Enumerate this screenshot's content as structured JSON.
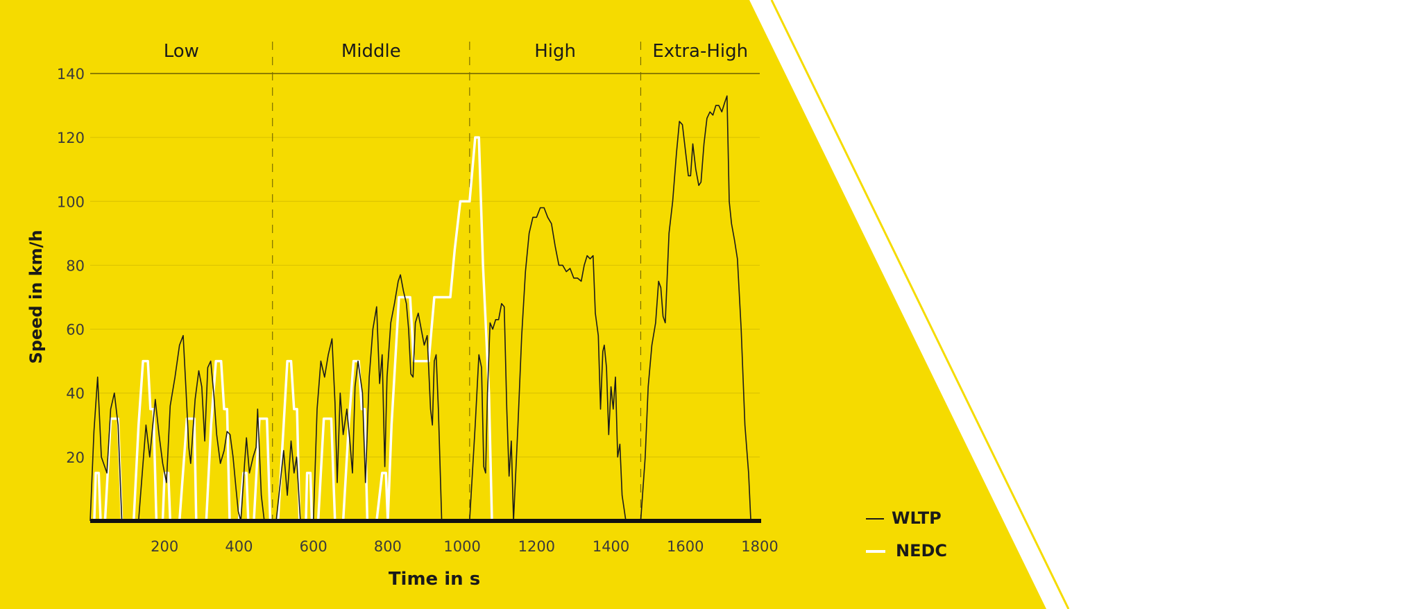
{
  "colors": {
    "background": "#f5db00",
    "page": "#ffffff",
    "wltp": "#1a1a1a",
    "nedc": "#ffffff",
    "grid": "#c9b400",
    "divider": "#8a7b00",
    "text": "#1a1a1a"
  },
  "chart_data": {
    "type": "line",
    "xlabel": "Time in s",
    "ylabel": "Speed in km/h",
    "xlim": [
      0,
      1800
    ],
    "ylim": [
      0,
      140
    ],
    "xticks": [
      200,
      400,
      600,
      800,
      1000,
      1200,
      1400,
      1600,
      1800
    ],
    "yticks": [
      20,
      40,
      60,
      80,
      100,
      120,
      140
    ],
    "grid": true,
    "legend_position": "bottom-right",
    "phases": [
      {
        "label": "Low",
        "start": 0,
        "end": 490
      },
      {
        "label": "Middle",
        "start": 490,
        "end": 1020
      },
      {
        "label": "High",
        "start": 1020,
        "end": 1480
      },
      {
        "label": "Extra-High",
        "start": 1480,
        "end": 1800
      }
    ],
    "series": [
      {
        "name": "WLTP",
        "color": "#1a1a1a",
        "points": [
          [
            0,
            0
          ],
          [
            10,
            28
          ],
          [
            20,
            45
          ],
          [
            30,
            20
          ],
          [
            45,
            15
          ],
          [
            55,
            35
          ],
          [
            65,
            40
          ],
          [
            75,
            30
          ],
          [
            85,
            0
          ],
          [
            110,
            0
          ],
          [
            130,
            0
          ],
          [
            150,
            30
          ],
          [
            160,
            20
          ],
          [
            175,
            38
          ],
          [
            185,
            27
          ],
          [
            195,
            18
          ],
          [
            205,
            12
          ],
          [
            215,
            36
          ],
          [
            228,
            45
          ],
          [
            240,
            55
          ],
          [
            250,
            58
          ],
          [
            258,
            40
          ],
          [
            265,
            23
          ],
          [
            270,
            18
          ],
          [
            282,
            38
          ],
          [
            292,
            47
          ],
          [
            300,
            42
          ],
          [
            308,
            25
          ],
          [
            316,
            48
          ],
          [
            324,
            50
          ],
          [
            332,
            40
          ],
          [
            340,
            27
          ],
          [
            350,
            18
          ],
          [
            360,
            22
          ],
          [
            368,
            28
          ],
          [
            376,
            27
          ],
          [
            384,
            20
          ],
          [
            392,
            10
          ],
          [
            398,
            3
          ],
          [
            405,
            0
          ],
          [
            415,
            18
          ],
          [
            420,
            26
          ],
          [
            428,
            15
          ],
          [
            438,
            20
          ],
          [
            446,
            23
          ],
          [
            450,
            35
          ],
          [
            460,
            8
          ],
          [
            468,
            0
          ],
          [
            500,
            0
          ],
          [
            520,
            22
          ],
          [
            530,
            8
          ],
          [
            540,
            25
          ],
          [
            548,
            15
          ],
          [
            555,
            20
          ],
          [
            565,
            0
          ],
          [
            600,
            0
          ],
          [
            610,
            35
          ],
          [
            620,
            50
          ],
          [
            630,
            45
          ],
          [
            640,
            52
          ],
          [
            650,
            57
          ],
          [
            658,
            37
          ],
          [
            664,
            12
          ],
          [
            672,
            40
          ],
          [
            680,
            27
          ],
          [
            690,
            35
          ],
          [
            698,
            25
          ],
          [
            705,
            15
          ],
          [
            712,
            42
          ],
          [
            720,
            50
          ],
          [
            732,
            40
          ],
          [
            740,
            12
          ],
          [
            750,
            45
          ],
          [
            760,
            60
          ],
          [
            770,
            67
          ],
          [
            778,
            43
          ],
          [
            785,
            52
          ],
          [
            792,
            17
          ],
          [
            798,
            45
          ],
          [
            808,
            62
          ],
          [
            818,
            68
          ],
          [
            828,
            75
          ],
          [
            834,
            77
          ],
          [
            842,
            72
          ],
          [
            850,
            68
          ],
          [
            856,
            60
          ],
          [
            862,
            46
          ],
          [
            868,
            45
          ],
          [
            874,
            62
          ],
          [
            882,
            65
          ],
          [
            890,
            60
          ],
          [
            898,
            55
          ],
          [
            906,
            58
          ],
          [
            915,
            35
          ],
          [
            920,
            30
          ],
          [
            925,
            50
          ],
          [
            930,
            52
          ],
          [
            936,
            35
          ],
          [
            945,
            0
          ],
          [
            1020,
            0
          ],
          [
            1035,
            30
          ],
          [
            1045,
            52
          ],
          [
            1052,
            48
          ],
          [
            1058,
            17
          ],
          [
            1063,
            15
          ],
          [
            1068,
            40
          ],
          [
            1075,
            62
          ],
          [
            1082,
            60
          ],
          [
            1090,
            63
          ],
          [
            1098,
            63
          ],
          [
            1106,
            68
          ],
          [
            1113,
            67
          ],
          [
            1120,
            35
          ],
          [
            1126,
            14
          ],
          [
            1132,
            25
          ],
          [
            1138,
            0
          ],
          [
            1150,
            30
          ],
          [
            1160,
            58
          ],
          [
            1170,
            78
          ],
          [
            1180,
            90
          ],
          [
            1190,
            95
          ],
          [
            1200,
            95
          ],
          [
            1210,
            98
          ],
          [
            1220,
            98
          ],
          [
            1230,
            95
          ],
          [
            1240,
            93
          ],
          [
            1250,
            86
          ],
          [
            1260,
            80
          ],
          [
            1270,
            80
          ],
          [
            1280,
            78
          ],
          [
            1290,
            79
          ],
          [
            1300,
            76
          ],
          [
            1310,
            76
          ],
          [
            1320,
            75
          ],
          [
            1328,
            80
          ],
          [
            1336,
            83
          ],
          [
            1344,
            82
          ],
          [
            1352,
            83
          ],
          [
            1358,
            65
          ],
          [
            1366,
            58
          ],
          [
            1372,
            35
          ],
          [
            1378,
            53
          ],
          [
            1382,
            55
          ],
          [
            1388,
            48
          ],
          [
            1394,
            27
          ],
          [
            1400,
            42
          ],
          [
            1406,
            35
          ],
          [
            1412,
            45
          ],
          [
            1418,
            20
          ],
          [
            1424,
            24
          ],
          [
            1430,
            8
          ],
          [
            1440,
            0
          ],
          [
            1480,
            0
          ],
          [
            1492,
            20
          ],
          [
            1500,
            42
          ],
          [
            1510,
            55
          ],
          [
            1520,
            62
          ],
          [
            1528,
            75
          ],
          [
            1534,
            73
          ],
          [
            1540,
            64
          ],
          [
            1546,
            62
          ],
          [
            1556,
            90
          ],
          [
            1566,
            100
          ],
          [
            1576,
            115
          ],
          [
            1584,
            125
          ],
          [
            1592,
            124
          ],
          [
            1600,
            116
          ],
          [
            1608,
            108
          ],
          [
            1614,
            108
          ],
          [
            1620,
            118
          ],
          [
            1628,
            110
          ],
          [
            1636,
            105
          ],
          [
            1642,
            106
          ],
          [
            1650,
            118
          ],
          [
            1658,
            126
          ],
          [
            1666,
            128
          ],
          [
            1674,
            127
          ],
          [
            1682,
            130
          ],
          [
            1690,
            130
          ],
          [
            1698,
            128
          ],
          [
            1706,
            131
          ],
          [
            1712,
            133
          ],
          [
            1718,
            100
          ],
          [
            1724,
            93
          ],
          [
            1732,
            88
          ],
          [
            1740,
            82
          ],
          [
            1750,
            60
          ],
          [
            1760,
            30
          ],
          [
            1770,
            15
          ],
          [
            1776,
            0
          ]
        ]
      },
      {
        "name": "NEDC",
        "color": "#ffffff",
        "points": [
          [
            0,
            0
          ],
          [
            11,
            0
          ],
          [
            15,
            15
          ],
          [
            23,
            15
          ],
          [
            28,
            0
          ],
          [
            40,
            0
          ],
          [
            55,
            32
          ],
          [
            75,
            32
          ],
          [
            85,
            0
          ],
          [
            117,
            0
          ],
          [
            130,
            30
          ],
          [
            142,
            50
          ],
          [
            155,
            50
          ],
          [
            162,
            35
          ],
          [
            170,
            35
          ],
          [
            178,
            0
          ],
          [
            195,
            0
          ],
          [
            200,
            15
          ],
          [
            210,
            15
          ],
          [
            215,
            0
          ],
          [
            240,
            0
          ],
          [
            260,
            32
          ],
          [
            280,
            32
          ],
          [
            285,
            0
          ],
          [
            312,
            0
          ],
          [
            325,
            30
          ],
          [
            338,
            50
          ],
          [
            352,
            50
          ],
          [
            360,
            35
          ],
          [
            368,
            35
          ],
          [
            375,
            0
          ],
          [
            400,
            0
          ],
          [
            412,
            15
          ],
          [
            420,
            15
          ],
          [
            425,
            0
          ],
          [
            440,
            0
          ],
          [
            455,
            32
          ],
          [
            475,
            32
          ],
          [
            484,
            0
          ],
          [
            505,
            0
          ],
          [
            520,
            30
          ],
          [
            530,
            50
          ],
          [
            540,
            50
          ],
          [
            548,
            35
          ],
          [
            556,
            35
          ],
          [
            563,
            0
          ],
          [
            580,
            0
          ],
          [
            583,
            15
          ],
          [
            592,
            15
          ],
          [
            596,
            0
          ],
          [
            613,
            0
          ],
          [
            628,
            32
          ],
          [
            648,
            32
          ],
          [
            658,
            0
          ],
          [
            680,
            0
          ],
          [
            695,
            30
          ],
          [
            708,
            50
          ],
          [
            722,
            50
          ],
          [
            730,
            35
          ],
          [
            738,
            35
          ],
          [
            745,
            0
          ],
          [
            770,
            0
          ],
          [
            785,
            15
          ],
          [
            795,
            15
          ],
          [
            800,
            0
          ],
          [
            810,
            30
          ],
          [
            830,
            70
          ],
          [
            860,
            70
          ],
          [
            870,
            50
          ],
          [
            910,
            50
          ],
          [
            925,
            70
          ],
          [
            968,
            70
          ],
          [
            980,
            85
          ],
          [
            995,
            100
          ],
          [
            1020,
            100
          ],
          [
            1035,
            120
          ],
          [
            1045,
            120
          ],
          [
            1056,
            80
          ],
          [
            1072,
            40
          ],
          [
            1080,
            0
          ]
        ]
      }
    ]
  },
  "legend": {
    "items": [
      {
        "label": "WLTP"
      },
      {
        "label": "NEDC"
      }
    ]
  }
}
